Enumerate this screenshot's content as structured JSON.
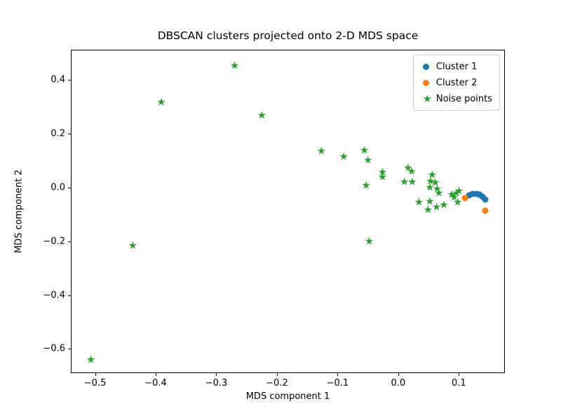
{
  "chart_data": {
    "type": "scatter",
    "title": "DBSCAN clusters projected onto 2-D MDS space",
    "xlabel": "MDS component 1",
    "ylabel": "MDS component 2",
    "xlim": [
      -0.54,
      0.176
    ],
    "ylim": [
      -0.69,
      0.512
    ],
    "grid": false,
    "xticks": {
      "values": [
        -0.5,
        -0.4,
        -0.3,
        -0.2,
        -0.1,
        0.0,
        0.1
      ],
      "labels": [
        "−0.5",
        "−0.4",
        "−0.3",
        "−0.2",
        "−0.1",
        "0.0",
        "0.1"
      ]
    },
    "yticks": {
      "values": [
        0.4,
        0.2,
        0.0,
        -0.2,
        -0.4,
        -0.6
      ],
      "labels": [
        "0.4",
        "0.2",
        "0.0",
        "−0.2",
        "−0.4",
        "−0.6"
      ]
    },
    "legend": {
      "position": "upper right"
    },
    "series": [
      {
        "name": "Cluster 1",
        "marker": "circle",
        "color": "#1f77b4",
        "points": [
          [
            0.116,
            -0.027
          ],
          [
            0.122,
            -0.022
          ],
          [
            0.128,
            -0.021
          ],
          [
            0.133,
            -0.023
          ],
          [
            0.138,
            -0.031
          ],
          [
            0.142,
            -0.042
          ]
        ]
      },
      {
        "name": "Cluster 2",
        "marker": "circle",
        "color": "#ff7f0e",
        "points": [
          [
            0.109,
            -0.036
          ],
          [
            0.143,
            -0.083
          ]
        ]
      },
      {
        "name": "Noise points",
        "marker": "star",
        "color": "#2ca02c",
        "points": [
          [
            -0.508,
            -0.639
          ],
          [
            -0.439,
            -0.215
          ],
          [
            -0.392,
            0.319
          ],
          [
            -0.271,
            0.454
          ],
          [
            -0.226,
            0.269
          ],
          [
            -0.128,
            0.137
          ],
          [
            -0.091,
            0.116
          ],
          [
            -0.057,
            0.14
          ],
          [
            -0.051,
            0.103
          ],
          [
            -0.054,
            0.01
          ],
          [
            -0.049,
            -0.198
          ],
          [
            -0.027,
            0.058
          ],
          [
            -0.027,
            0.041
          ],
          [
            0.015,
            0.075
          ],
          [
            0.021,
            0.062
          ],
          [
            0.009,
            0.023
          ],
          [
            0.022,
            0.023
          ],
          [
            0.055,
            0.049
          ],
          [
            0.052,
            0.025
          ],
          [
            0.06,
            0.021
          ],
          [
            0.051,
            0.001
          ],
          [
            0.063,
            -0.003
          ],
          [
            0.066,
            -0.018
          ],
          [
            0.033,
            -0.053
          ],
          [
            0.051,
            -0.049
          ],
          [
            0.048,
            -0.081
          ],
          [
            0.062,
            -0.072
          ],
          [
            0.074,
            -0.062
          ],
          [
            0.087,
            -0.023
          ],
          [
            0.095,
            -0.018
          ],
          [
            0.091,
            -0.034
          ],
          [
            0.097,
            -0.053
          ],
          [
            0.099,
            -0.01
          ]
        ]
      }
    ]
  }
}
